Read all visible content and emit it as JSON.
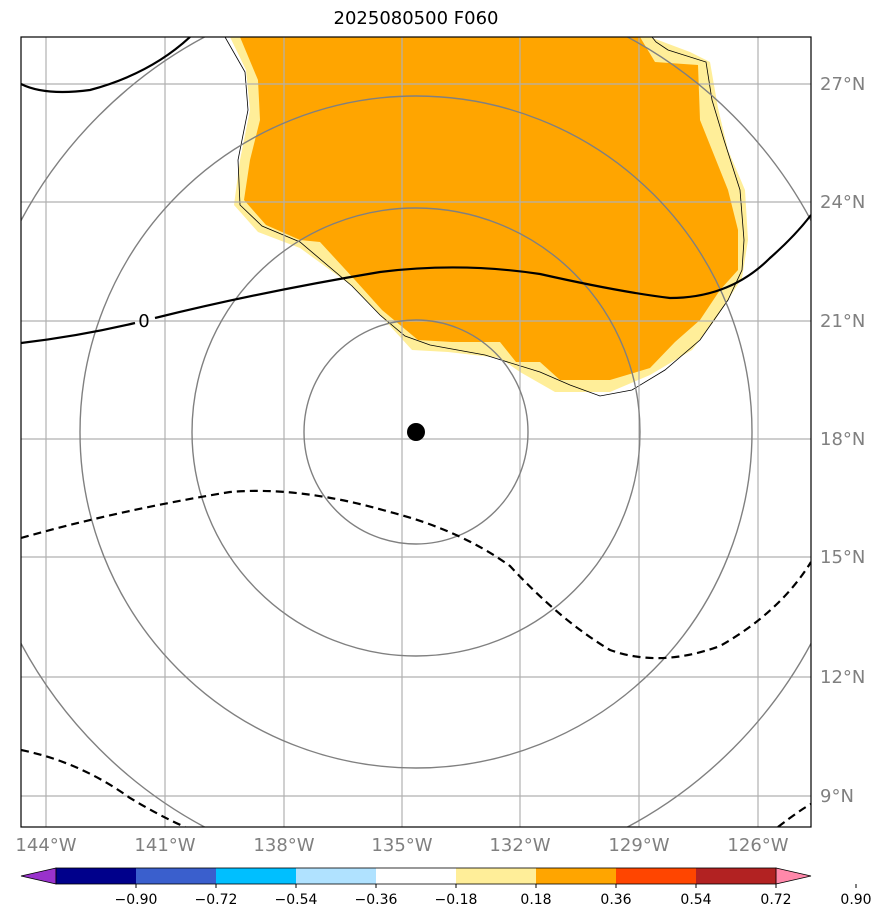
{
  "title": "2025080500 F060",
  "map": {
    "lat_ticks": [
      "27°N",
      "24°N",
      "21°N",
      "18°N",
      "15°N",
      "12°N",
      "9°N"
    ],
    "lon_ticks": [
      "144°W",
      "141°W",
      "138°W",
      "135°W",
      "132°W",
      "129°W",
      "126°W"
    ],
    "center_marker": {
      "lat": 18.2,
      "lon": -134.7
    },
    "contour_label": "0",
    "shading_colors": [
      "#ffee99",
      "#ffa500"
    ]
  },
  "colorbar": {
    "ticks": [
      "−0.90",
      "−0.72",
      "−0.54",
      "−0.36",
      "−0.18",
      "0.18",
      "0.36",
      "0.54",
      "0.72",
      "0.90"
    ],
    "colors": [
      "#9932cc",
      "#00008b",
      "#3a5fcd",
      "#00bfff",
      "#b0e2ff",
      "#ffffff",
      "#ffee99",
      "#ffa500",
      "#ff4500",
      "#b22222",
      "#ff88aa"
    ]
  }
}
